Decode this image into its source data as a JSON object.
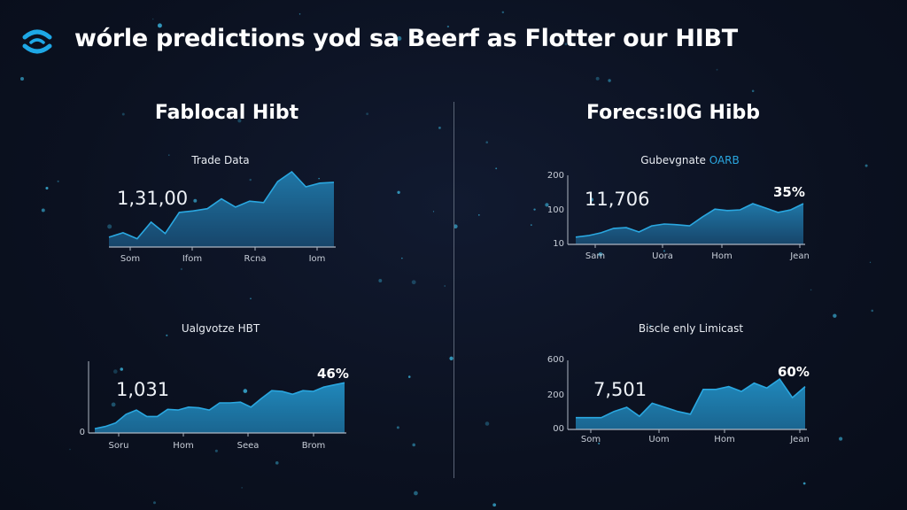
{
  "header": {
    "title": "wórle predictions yod sa Beerf as Flotter our HIBT",
    "logo_icon": "wifi-signal-icon"
  },
  "left_panel": {
    "title": "Fablocal  Hibt"
  },
  "right_panel": {
    "title": "Forecs:l0G  Hibb"
  },
  "colors": {
    "accent": "#2aa7e0",
    "area": "#1f6d98",
    "background": "#0b1120"
  },
  "chart_data": [
    {
      "type": "area",
      "title": "Trade Data",
      "big_value": "1,31,00",
      "x_ticks": [
        "Som",
        "Ifom",
        "Rcna",
        "Iom"
      ],
      "y_ticks": [],
      "ylim": [
        0,
        100
      ],
      "values": [
        13,
        19,
        11,
        33,
        18,
        46,
        48,
        51,
        64,
        53,
        61,
        59,
        87,
        100,
        80,
        85,
        86
      ]
    },
    {
      "type": "area",
      "title_main": "Gubevgnate ",
      "title_accent": "OARB",
      "big_value": "11,706",
      "percent": "35%",
      "x_ticks": [
        "Sam",
        "Uora",
        "Hom",
        "Jean"
      ],
      "y_ticks": [
        "200",
        "100",
        "10"
      ],
      "ylim": [
        10,
        200
      ],
      "values": [
        30,
        34,
        42,
        54,
        56,
        44,
        61,
        66,
        64,
        61,
        85,
        107,
        103,
        105,
        122,
        110,
        98,
        105,
        122
      ]
    },
    {
      "type": "area",
      "title": "Ualgvotze HBT",
      "big_value": "1,031",
      "percent": "46%",
      "x_ticks": [
        "Soru",
        "Hom",
        "Seea",
        "Brom"
      ],
      "y_ticks": [
        "0"
      ],
      "ylim": [
        0,
        100
      ],
      "values": [
        6,
        9,
        14,
        26,
        32,
        23,
        23,
        33,
        32,
        36,
        35,
        32,
        42,
        42,
        43,
        36,
        48,
        59,
        58,
        54,
        59,
        58,
        64,
        67,
        70
      ]
    },
    {
      "type": "area",
      "title": "Biscle enly Limicast",
      "big_value": "7,501",
      "percent": "60%",
      "x_ticks": [
        "Som",
        "Uom",
        "Hom",
        "Jean"
      ],
      "y_ticks": [
        "600",
        "200",
        "00"
      ],
      "ylim": [
        0,
        100
      ],
      "values": [
        17,
        17,
        17,
        26,
        32,
        19,
        38,
        32,
        26,
        22,
        58,
        58,
        62,
        55,
        67,
        60,
        73,
        46,
        62
      ]
    }
  ]
}
